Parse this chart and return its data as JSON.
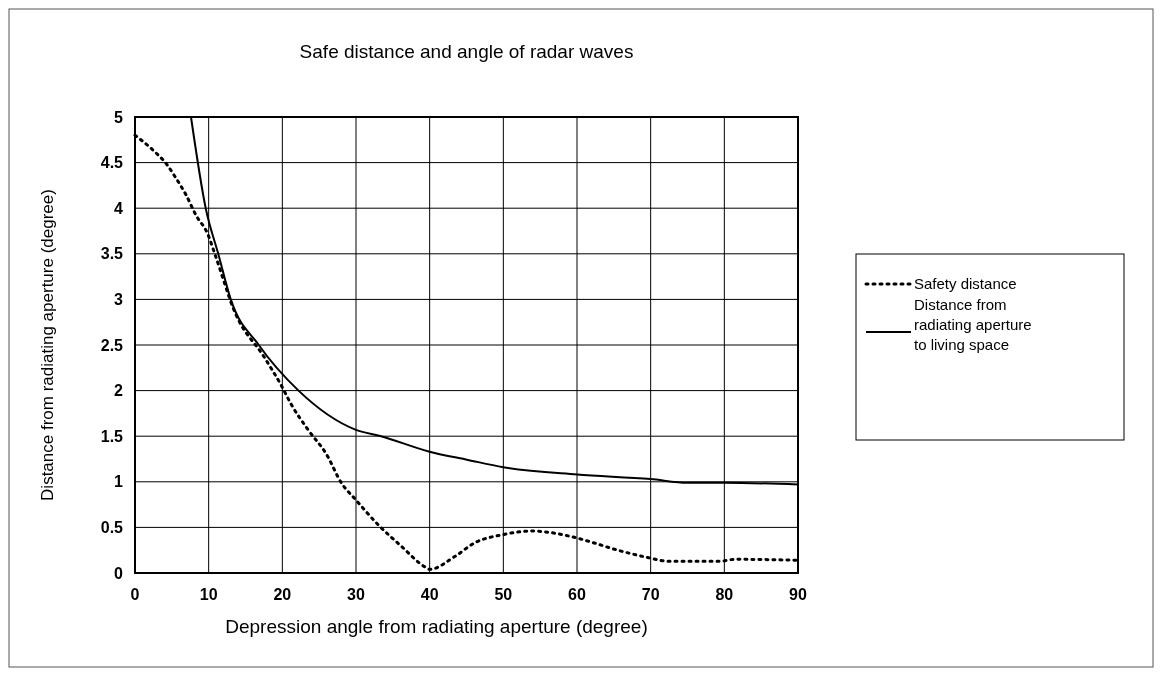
{
  "chart_data": {
    "type": "line",
    "title": "Safe distance and angle of radar waves",
    "xlabel": "Depression angle from radiating aperture (degree)",
    "ylabel": "Distance from radiating aperture (degree)",
    "xlim": [
      0,
      90
    ],
    "xticks": [
      0,
      10,
      20,
      30,
      40,
      50,
      60,
      70,
      80,
      90
    ],
    "ylim": [
      0,
      5
    ],
    "yticks": [
      0,
      0.5,
      1,
      1.5,
      2,
      2.5,
      3,
      3.5,
      4,
      4.5,
      5
    ],
    "grid": true,
    "legend": "right",
    "series": [
      {
        "name": "Safety distance",
        "color": "#000000",
        "line_style": "dotted",
        "x": [
          0,
          1.1,
          2.4,
          4.5,
          5.4,
          6.9,
          8.3,
          9.8,
          11,
          13.5,
          17.6,
          19.9,
          21.2,
          23.5,
          26,
          28,
          30,
          33,
          36.2,
          39.3,
          40,
          43.4,
          46.1,
          49.9,
          53.8,
          59.2,
          61.9,
          65.1,
          69.6,
          72.3,
          79.5,
          81.4,
          90
        ],
        "values": [
          4.8,
          4.73,
          4.64,
          4.46,
          4.35,
          4.15,
          3.92,
          3.73,
          3.46,
          2.87,
          2.36,
          2.05,
          1.85,
          1.57,
          1.3,
          0.99,
          0.8,
          0.53,
          0.29,
          0.07,
          0.04,
          0.18,
          0.33,
          0.42,
          0.46,
          0.4,
          0.34,
          0.26,
          0.17,
          0.13,
          0.13,
          0.15,
          0.14
        ]
      },
      {
        "name": "Distance from radiating aperture to living space",
        "color": "#000000",
        "line_style": "solid",
        "x": [
          7.6,
          9.6,
          11.3,
          13,
          16.8,
          22.2,
          30,
          33.4,
          40,
          45.2,
          50,
          60,
          70,
          75,
          80,
          90
        ],
        "values": [
          5,
          4,
          3.5,
          3,
          2.5,
          2,
          1.57,
          1.5,
          1.33,
          1.24,
          1.16,
          1.08,
          1.03,
          0.99,
          0.99,
          0.97
        ]
      }
    ]
  }
}
